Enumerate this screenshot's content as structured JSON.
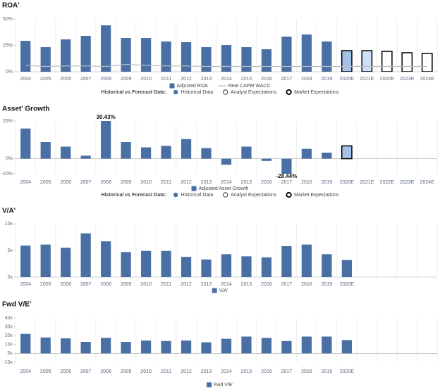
{
  "chart_data": [
    {
      "type": "bar",
      "title": "ROA'",
      "categories": [
        "2004",
        "2005",
        "2006",
        "2007",
        "2008",
        "2009",
        "2010",
        "2011",
        "2012",
        "2013",
        "2014",
        "2015",
        "2016",
        "2017",
        "2018",
        "2019",
        "2020E",
        "2021E",
        "2022E",
        "2023E",
        "2024E"
      ],
      "series": [
        {
          "name": "Adjusted ROA",
          "kind": "bar",
          "color": "#4a6fa5",
          "values": [
            29.3,
            23.3,
            30.7,
            34,
            44,
            32,
            32,
            28.7,
            28,
            23.3,
            25.3,
            23.3,
            21.3,
            33.3,
            35.3,
            28.7,
            20,
            20,
            19.3,
            18,
            17.3
          ],
          "colors": [
            "#4a6fa5",
            "#4a6fa5",
            "#4a6fa5",
            "#4a6fa5",
            "#4a6fa5",
            "#4a6fa5",
            "#4a6fa5",
            "#4a6fa5",
            "#4a6fa5",
            "#4a6fa5",
            "#4a6fa5",
            "#4a6fa5",
            "#4a6fa5",
            "#4a6fa5",
            "#4a6fa5",
            "#4a6fa5",
            "#a4c2e8",
            "#cfe1f7",
            "#ffffff",
            "#ffffff",
            "#ffffff"
          ],
          "edgecolors": [
            null,
            null,
            null,
            null,
            null,
            null,
            null,
            null,
            null,
            null,
            null,
            null,
            null,
            null,
            null,
            null,
            "#000000",
            "#000000",
            "#000000",
            "#000000",
            "#000000"
          ]
        },
        {
          "name": "Real CAPM WACC",
          "kind": "line",
          "color": "#b8bcc2",
          "values": [
            6,
            5,
            5.5,
            5.5,
            5,
            7,
            6,
            5.5,
            5.5,
            5,
            5,
            5,
            5,
            5,
            5,
            5,
            5,
            5,
            5,
            5,
            5
          ]
        }
      ],
      "ylim": [
        0,
        50
      ],
      "yticks": [
        {
          "value": 0,
          "label": "0%"
        },
        {
          "value": 25,
          "label": "25%"
        },
        {
          "value": 50,
          "label": "50%"
        }
      ],
      "legend_title": "Historical vs Forecast Data:",
      "forecast_legend": [
        "Historical Data",
        "Analyst Expectations",
        "Market Expectations"
      ]
    },
    {
      "type": "bar",
      "title": "Asset' Growth",
      "categories": [
        "2004",
        "2005",
        "2006",
        "2007",
        "2008",
        "2009",
        "2010",
        "2011",
        "2012",
        "2013",
        "2014",
        "2015",
        "2016",
        "2017",
        "2018",
        "2019",
        "2020E",
        "2021E",
        "2022E",
        "2023E",
        "2024E"
      ],
      "series": [
        {
          "name": "Adjusted Asset Growth",
          "kind": "bar",
          "color": "#4a6fa5",
          "values": [
            20,
            11,
            8,
            2,
            30.43,
            11,
            7.5,
            8.5,
            13,
            7,
            -4,
            8,
            -1.5,
            -28.44,
            6.5,
            4,
            8.5,
            null,
            null,
            null,
            null
          ],
          "value_labels": [
            null,
            null,
            null,
            null,
            "30.43%",
            null,
            null,
            null,
            null,
            null,
            null,
            null,
            null,
            "-28.44%",
            null,
            null,
            null,
            null,
            null,
            null,
            null
          ],
          "colors": [
            "#4a6fa5",
            "#4a6fa5",
            "#4a6fa5",
            "#4a6fa5",
            "#4a6fa5",
            "#4a6fa5",
            "#4a6fa5",
            "#4a6fa5",
            "#4a6fa5",
            "#4a6fa5",
            "#4a6fa5",
            "#4a6fa5",
            "#4a6fa5",
            "#4a6fa5",
            "#4a6fa5",
            "#4a6fa5",
            "#a4c2e8",
            "#4a6fa5",
            "#4a6fa5",
            "#4a6fa5",
            "#4a6fa5"
          ],
          "edgecolors": [
            null,
            null,
            null,
            null,
            null,
            null,
            null,
            null,
            null,
            null,
            null,
            null,
            null,
            null,
            null,
            null,
            "#000000",
            null,
            null,
            null,
            null
          ]
        }
      ],
      "ylim": [
        -10,
        25
      ],
      "yticks": [
        {
          "value": -10,
          "label": "-10%"
        },
        {
          "value": 0,
          "label": "0%"
        },
        {
          "value": 25,
          "label": "25%"
        }
      ],
      "legend_title": "Historical vs Forecast Data:",
      "forecast_legend": [
        "Historical Data",
        "Analyst Expectations",
        "Market Expectations"
      ]
    },
    {
      "type": "bar",
      "title": "V/A'",
      "categories": [
        "2004",
        "2005",
        "2006",
        "2007",
        "2008",
        "2009",
        "2010",
        "2011",
        "2012",
        "2013",
        "2014",
        "2015",
        "2016",
        "2017",
        "2018",
        "2019",
        "2020E",
        null,
        null,
        null,
        null
      ],
      "series": [
        {
          "name": "V/A'",
          "kind": "bar",
          "color": "#4a6fa5",
          "values": [
            5.9,
            6.1,
            5.5,
            8.2,
            6.7,
            4.7,
            4.9,
            4.9,
            3.8,
            3.3,
            4.3,
            3.9,
            3.7,
            5.8,
            6.1,
            4.3,
            3.2,
            null,
            null,
            null,
            null
          ]
        }
      ],
      "ylim": [
        0,
        10
      ],
      "yticks": [
        {
          "value": 0,
          "label": "0x"
        },
        {
          "value": 5,
          "label": "5x"
        },
        {
          "value": 10,
          "label": "10x"
        }
      ]
    },
    {
      "type": "bar",
      "title": "Fwd V/E'",
      "categories": [
        "2004",
        "2005",
        "2006",
        "2007",
        "2008",
        "2009",
        "2010",
        "2011",
        "2012",
        "2013",
        "2014",
        "2015",
        "2016",
        "2017",
        "2018",
        "2019",
        "2020E",
        null,
        null,
        null,
        null
      ],
      "series": [
        {
          "name": "Fwd V/E'",
          "kind": "bar",
          "color": "#4a6fa5",
          "values": [
            22,
            18,
            17,
            13,
            17.5,
            13,
            14.5,
            14,
            14.5,
            12.5,
            16.5,
            19,
            17.5,
            14,
            19,
            19,
            15,
            null,
            null,
            null,
            null
          ]
        }
      ],
      "ylim": [
        -10,
        40
      ],
      "yticks": [
        {
          "value": -10,
          "label": "-10x"
        },
        {
          "value": 0,
          "label": "0x"
        },
        {
          "value": 10,
          "label": "10x"
        },
        {
          "value": 20,
          "label": "20x"
        },
        {
          "value": 30,
          "label": "30x"
        },
        {
          "value": 40,
          "label": "40x"
        }
      ]
    }
  ]
}
